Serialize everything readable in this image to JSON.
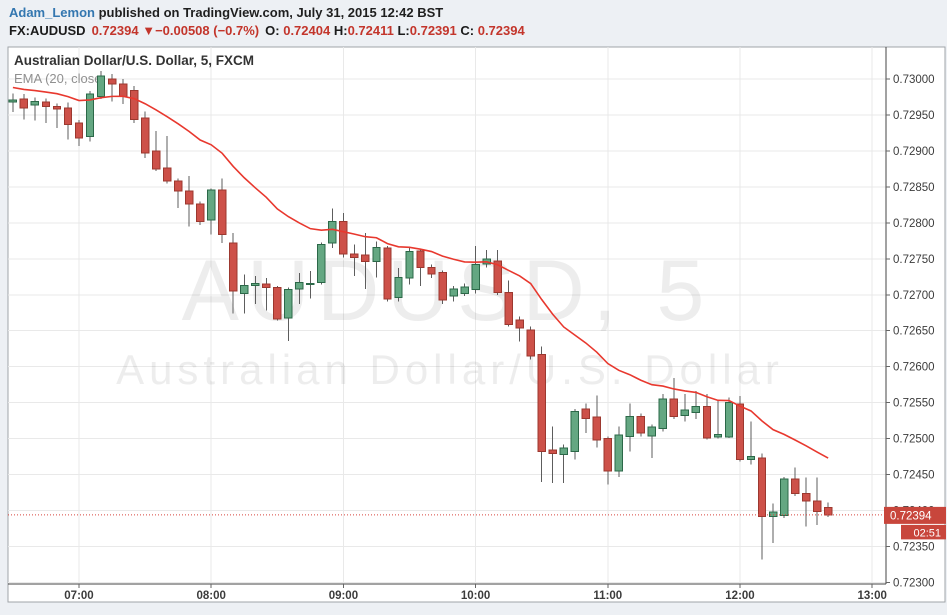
{
  "header": {
    "author": "Adam_Lemon",
    "published": " published on TradingView.com, July 31, 2015 12:42 BST",
    "symbol": "FX:AUDUSD",
    "last": "0.72394",
    "direction": "▼",
    "change": "−0.00508 (−0.7%)",
    "o_label": "O:",
    "o_value": "0.72404",
    "h_label": "H:",
    "h_value": "0.72411",
    "l_label": "L:",
    "l_value": "0.72391",
    "c_label": "C:",
    "c_value": "0.72394"
  },
  "chart": {
    "title": "Australian Dollar/U.S. Dollar, 5, FXCM",
    "indicator_label": "EMA (20, close",
    "watermark_line1": "AUDUSD, 5",
    "watermark_line2": "Australian Dollar/U.S. Dollar",
    "price_label": "0.72394",
    "countdown": "02:51"
  },
  "chart_data": {
    "type": "candlestick",
    "symbol": "AUDUSD",
    "interval_minutes": 5,
    "exchange": "FXCM",
    "indicator": "EMA(20, close)",
    "ema_seed": 0.7299,
    "last_price": 0.72394,
    "ylim": [
      0.723,
      0.73
    ],
    "y_tick_step": 0.0005,
    "x_ticks": [
      "07:00",
      "08:00",
      "09:00",
      "10:00",
      "11:00",
      "12:00",
      "13:00"
    ],
    "grid": true,
    "colors": {
      "up_fill": "#64a782",
      "up_border": "#2b6848",
      "down_fill": "#cd5149",
      "down_border": "#9c382f",
      "wick": "#5d5d5d",
      "ema_line": "#e8382e",
      "last_price_line": "#d6453e",
      "label_box": "#c8463c",
      "grid_line": "#e9e9e9",
      "axis_text": "#3c3c3c",
      "watermark": "rgba(80,80,80,0.10)"
    },
    "candles": [
      {
        "t": "06:30",
        "o": 0.72968,
        "h": 0.7298,
        "l": 0.72954,
        "c": 0.72971
      },
      {
        "t": "06:35",
        "o": 0.72972,
        "h": 0.72979,
        "l": 0.72944,
        "c": 0.7296
      },
      {
        "t": "06:40",
        "o": 0.72964,
        "h": 0.72974,
        "l": 0.72942,
        "c": 0.72969
      },
      {
        "t": "06:45",
        "o": 0.72968,
        "h": 0.72973,
        "l": 0.72939,
        "c": 0.72962
      },
      {
        "t": "06:50",
        "o": 0.72962,
        "h": 0.72966,
        "l": 0.72932,
        "c": 0.72958
      },
      {
        "t": "06:55",
        "o": 0.7296,
        "h": 0.72967,
        "l": 0.72916,
        "c": 0.72937
      },
      {
        "t": "07:00",
        "o": 0.72939,
        "h": 0.72943,
        "l": 0.72907,
        "c": 0.72918
      },
      {
        "t": "07:05",
        "o": 0.7292,
        "h": 0.72983,
        "l": 0.72913,
        "c": 0.72979
      },
      {
        "t": "07:10",
        "o": 0.72976,
        "h": 0.73011,
        "l": 0.72972,
        "c": 0.73004
      },
      {
        "t": "07:15",
        "o": 0.73,
        "h": 0.73007,
        "l": 0.72969,
        "c": 0.72993
      },
      {
        "t": "07:20",
        "o": 0.72993,
        "h": 0.73,
        "l": 0.72965,
        "c": 0.72976
      },
      {
        "t": "07:25",
        "o": 0.72984,
        "h": 0.7299,
        "l": 0.72939,
        "c": 0.72944
      },
      {
        "t": "07:30",
        "o": 0.72946,
        "h": 0.72955,
        "l": 0.7289,
        "c": 0.72897
      },
      {
        "t": "07:35",
        "o": 0.729,
        "h": 0.72928,
        "l": 0.72872,
        "c": 0.72875
      },
      {
        "t": "07:40",
        "o": 0.72876,
        "h": 0.72921,
        "l": 0.72855,
        "c": 0.72858
      },
      {
        "t": "07:45",
        "o": 0.72858,
        "h": 0.72862,
        "l": 0.72821,
        "c": 0.72844
      },
      {
        "t": "07:50",
        "o": 0.72844,
        "h": 0.72865,
        "l": 0.72795,
        "c": 0.72826
      },
      {
        "t": "07:55",
        "o": 0.72826,
        "h": 0.7283,
        "l": 0.72797,
        "c": 0.72802
      },
      {
        "t": "08:00",
        "o": 0.72804,
        "h": 0.72848,
        "l": 0.72784,
        "c": 0.72846
      },
      {
        "t": "08:05",
        "o": 0.72846,
        "h": 0.72862,
        "l": 0.72772,
        "c": 0.72784
      },
      {
        "t": "08:10",
        "o": 0.72772,
        "h": 0.72786,
        "l": 0.72674,
        "c": 0.72705
      },
      {
        "t": "08:15",
        "o": 0.72702,
        "h": 0.72728,
        "l": 0.72674,
        "c": 0.72713
      },
      {
        "t": "08:20",
        "o": 0.72713,
        "h": 0.72726,
        "l": 0.72687,
        "c": 0.72716
      },
      {
        "t": "08:25",
        "o": 0.72715,
        "h": 0.72723,
        "l": 0.72678,
        "c": 0.7271
      },
      {
        "t": "08:30",
        "o": 0.7271,
        "h": 0.72712,
        "l": 0.72664,
        "c": 0.72666
      },
      {
        "t": "08:35",
        "o": 0.72668,
        "h": 0.7271,
        "l": 0.72636,
        "c": 0.72707
      },
      {
        "t": "08:40",
        "o": 0.72708,
        "h": 0.7273,
        "l": 0.72687,
        "c": 0.72717
      },
      {
        "t": "08:45",
        "o": 0.72716,
        "h": 0.72733,
        "l": 0.72695,
        "c": 0.72716
      },
      {
        "t": "08:50",
        "o": 0.72717,
        "h": 0.72773,
        "l": 0.72714,
        "c": 0.7277
      },
      {
        "t": "08:55",
        "o": 0.72772,
        "h": 0.7282,
        "l": 0.72765,
        "c": 0.72802
      },
      {
        "t": "09:00",
        "o": 0.72802,
        "h": 0.72814,
        "l": 0.72752,
        "c": 0.72757
      },
      {
        "t": "09:05",
        "o": 0.72757,
        "h": 0.7277,
        "l": 0.72726,
        "c": 0.72752
      },
      {
        "t": "09:10",
        "o": 0.72755,
        "h": 0.72786,
        "l": 0.72708,
        "c": 0.72746
      },
      {
        "t": "09:15",
        "o": 0.72746,
        "h": 0.72774,
        "l": 0.72724,
        "c": 0.72766
      },
      {
        "t": "09:20",
        "o": 0.72765,
        "h": 0.72768,
        "l": 0.72691,
        "c": 0.72694
      },
      {
        "t": "09:25",
        "o": 0.72696,
        "h": 0.72737,
        "l": 0.72691,
        "c": 0.72724
      },
      {
        "t": "09:30",
        "o": 0.72723,
        "h": 0.72765,
        "l": 0.72714,
        "c": 0.7276
      },
      {
        "t": "09:35",
        "o": 0.72761,
        "h": 0.72764,
        "l": 0.72712,
        "c": 0.72738
      },
      {
        "t": "09:40",
        "o": 0.72738,
        "h": 0.72742,
        "l": 0.72723,
        "c": 0.72729
      },
      {
        "t": "09:45",
        "o": 0.72731,
        "h": 0.72734,
        "l": 0.72687,
        "c": 0.72693
      },
      {
        "t": "09:50",
        "o": 0.72698,
        "h": 0.72712,
        "l": 0.72691,
        "c": 0.72708
      },
      {
        "t": "09:55",
        "o": 0.72702,
        "h": 0.72716,
        "l": 0.72698,
        "c": 0.72711
      },
      {
        "t": "10:00",
        "o": 0.72707,
        "h": 0.72768,
        "l": 0.72702,
        "c": 0.72742
      },
      {
        "t": "10:05",
        "o": 0.72743,
        "h": 0.72762,
        "l": 0.72738,
        "c": 0.7275
      },
      {
        "t": "10:10",
        "o": 0.72747,
        "h": 0.72762,
        "l": 0.727,
        "c": 0.72703
      },
      {
        "t": "10:15",
        "o": 0.72703,
        "h": 0.7272,
        "l": 0.72656,
        "c": 0.72659
      },
      {
        "t": "10:20",
        "o": 0.72665,
        "h": 0.7267,
        "l": 0.72635,
        "c": 0.72654
      },
      {
        "t": "10:25",
        "o": 0.72651,
        "h": 0.72656,
        "l": 0.7261,
        "c": 0.72615
      },
      {
        "t": "10:30",
        "o": 0.72617,
        "h": 0.72628,
        "l": 0.7244,
        "c": 0.72482
      },
      {
        "t": "10:35",
        "o": 0.72484,
        "h": 0.72517,
        "l": 0.72438,
        "c": 0.72479
      },
      {
        "t": "10:40",
        "o": 0.72478,
        "h": 0.72492,
        "l": 0.72438,
        "c": 0.72487
      },
      {
        "t": "10:45",
        "o": 0.72482,
        "h": 0.72541,
        "l": 0.72471,
        "c": 0.72538
      },
      {
        "t": "10:50",
        "o": 0.72541,
        "h": 0.72549,
        "l": 0.72508,
        "c": 0.72528
      },
      {
        "t": "10:55",
        "o": 0.7253,
        "h": 0.7256,
        "l": 0.72488,
        "c": 0.72498
      },
      {
        "t": "11:00",
        "o": 0.725,
        "h": 0.72503,
        "l": 0.72436,
        "c": 0.72455
      },
      {
        "t": "11:05",
        "o": 0.72455,
        "h": 0.72517,
        "l": 0.72447,
        "c": 0.72505
      },
      {
        "t": "11:10",
        "o": 0.72503,
        "h": 0.72549,
        "l": 0.72482,
        "c": 0.72531
      },
      {
        "t": "11:15",
        "o": 0.72531,
        "h": 0.72535,
        "l": 0.72503,
        "c": 0.72508
      },
      {
        "t": "11:20",
        "o": 0.72504,
        "h": 0.7252,
        "l": 0.72473,
        "c": 0.72516
      },
      {
        "t": "11:25",
        "o": 0.72514,
        "h": 0.72562,
        "l": 0.7251,
        "c": 0.72555
      },
      {
        "t": "11:30",
        "o": 0.72555,
        "h": 0.72584,
        "l": 0.72527,
        "c": 0.72531
      },
      {
        "t": "11:35",
        "o": 0.72532,
        "h": 0.72562,
        "l": 0.72524,
        "c": 0.7254
      },
      {
        "t": "11:40",
        "o": 0.72536,
        "h": 0.72566,
        "l": 0.72527,
        "c": 0.72545
      },
      {
        "t": "11:45",
        "o": 0.72545,
        "h": 0.72562,
        "l": 0.72499,
        "c": 0.72501
      },
      {
        "t": "11:50",
        "o": 0.72502,
        "h": 0.72552,
        "l": 0.725,
        "c": 0.72506
      },
      {
        "t": "11:55",
        "o": 0.72502,
        "h": 0.72557,
        "l": 0.72501,
        "c": 0.7255
      },
      {
        "t": "12:00",
        "o": 0.72548,
        "h": 0.72559,
        "l": 0.72468,
        "c": 0.72471
      },
      {
        "t": "12:05",
        "o": 0.72471,
        "h": 0.72524,
        "l": 0.72464,
        "c": 0.72475
      },
      {
        "t": "12:10",
        "o": 0.72473,
        "h": 0.72479,
        "l": 0.72332,
        "c": 0.72392
      },
      {
        "t": "12:15",
        "o": 0.72392,
        "h": 0.7241,
        "l": 0.72355,
        "c": 0.72398
      },
      {
        "t": "12:20",
        "o": 0.72393,
        "h": 0.72447,
        "l": 0.7239,
        "c": 0.72444
      },
      {
        "t": "12:25",
        "o": 0.72444,
        "h": 0.7246,
        "l": 0.7242,
        "c": 0.72424
      },
      {
        "t": "12:30",
        "o": 0.72424,
        "h": 0.72446,
        "l": 0.72378,
        "c": 0.72413
      },
      {
        "t": "12:35",
        "o": 0.72413,
        "h": 0.72446,
        "l": 0.7238,
        "c": 0.72399
      },
      {
        "t": "12:40",
        "o": 0.72404,
        "h": 0.72411,
        "l": 0.72391,
        "c": 0.72394
      }
    ]
  }
}
